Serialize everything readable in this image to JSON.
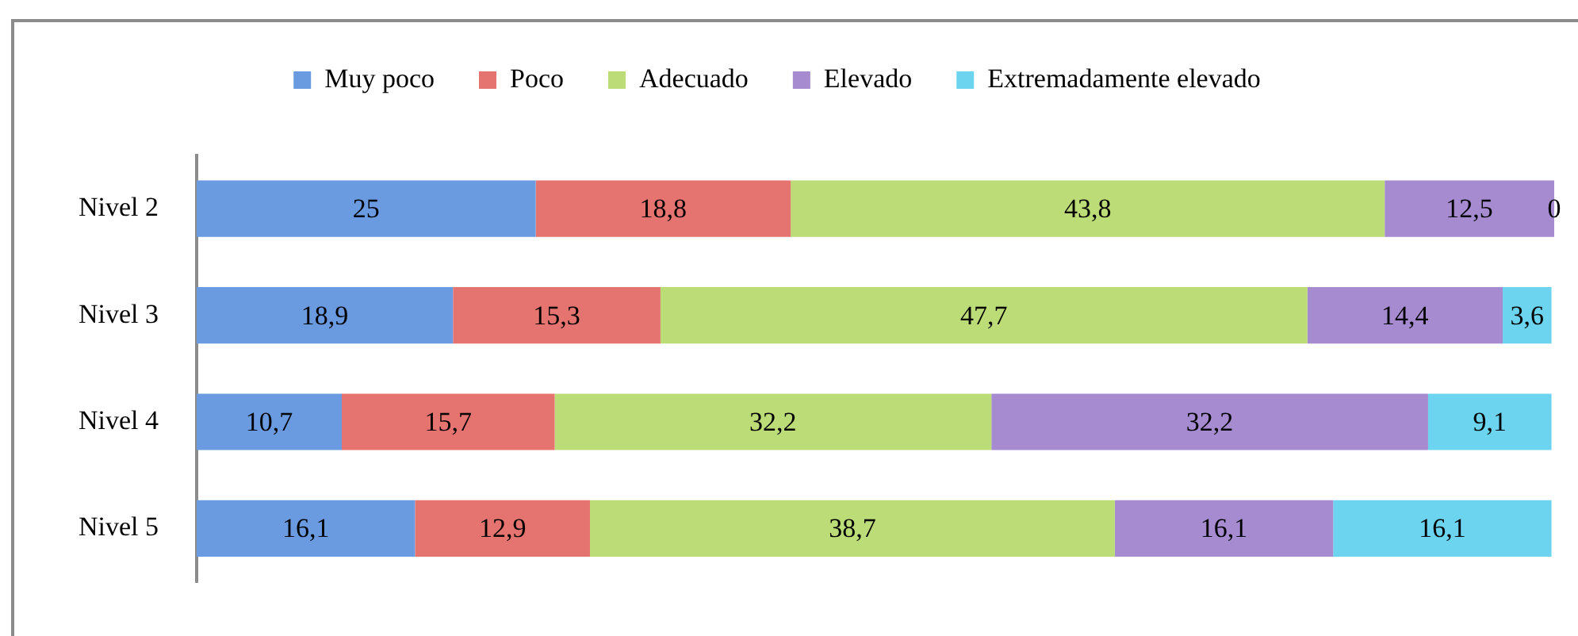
{
  "chart_data": {
    "type": "bar",
    "orientation": "horizontal",
    "stacked": true,
    "categories": [
      "Nivel 2",
      "Nivel 3",
      "Nivel 4",
      "Nivel 5"
    ],
    "xlim": [
      0,
      100.1
    ],
    "tick_labels": "y",
    "legend": "top",
    "grid": false,
    "series": [
      {
        "name": "Muy poco",
        "color": "#6a9be0",
        "values": [
          25,
          18.9,
          10.7,
          16.1
        ],
        "value_labels": [
          "25",
          "18,9",
          "10,7",
          "16,1"
        ]
      },
      {
        "name": "Poco",
        "color": "#e57470",
        "values": [
          18.8,
          15.3,
          15.7,
          12.9
        ],
        "value_labels": [
          "18,8",
          "15,3",
          "15,7",
          "12,9"
        ]
      },
      {
        "name": "Adecuado",
        "color": "#bcdc78",
        "values": [
          43.8,
          47.7,
          32.2,
          38.7
        ],
        "value_labels": [
          "43,8",
          "47,7",
          "32,2",
          "38,7"
        ]
      },
      {
        "name": "Elevado",
        "color": "#a68bd0",
        "values": [
          12.5,
          14.4,
          32.2,
          16.1
        ],
        "value_labels": [
          "12,5",
          "14,4",
          "32,2",
          "16,1"
        ]
      },
      {
        "name": "Extremadamente elevado",
        "color": "#6cd4ee",
        "values": [
          0,
          3.6,
          9.1,
          16.1
        ],
        "value_labels": [
          "0",
          "3,6",
          "9,1",
          "16,1"
        ]
      }
    ]
  }
}
